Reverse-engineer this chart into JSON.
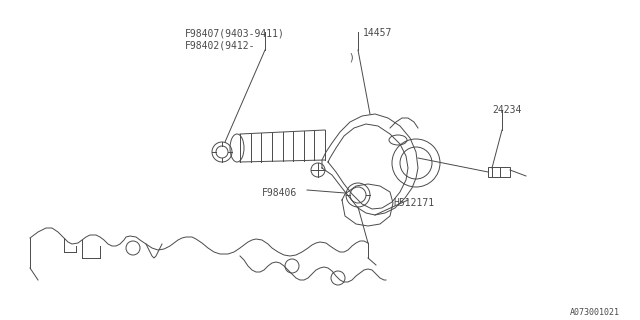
{
  "bg_color": "#ffffff",
  "line_color": "#4a4a4a",
  "label_color": "#4a4a4a",
  "labels": {
    "F98407": "F98407(9403-9411)",
    "F98402": "F98402(9412-",
    "bracket": ")",
    "14457": "14457",
    "24234": "24234",
    "F98406": "F98406",
    "H512171": "H512171",
    "diagram_id": "A073001021"
  },
  "font_size": 7.0,
  "small_font_size": 6.0
}
